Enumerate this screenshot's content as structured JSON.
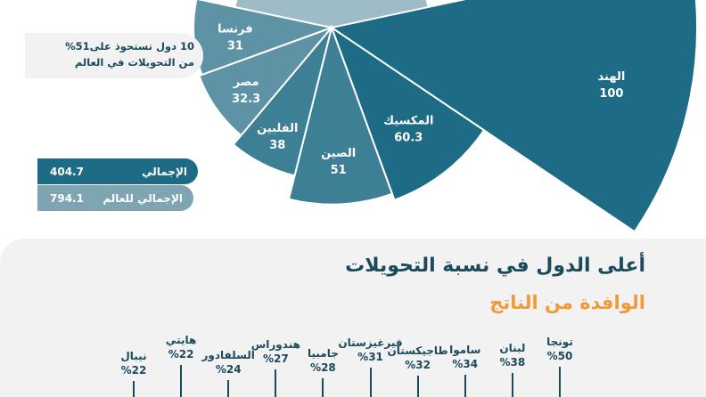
{
  "colors": {
    "dark_teal": "#1d6b84",
    "mid_teal": "#3d7f95",
    "light_teal": "#5e93a6",
    "navy_text": "#1a4a5c",
    "orange": "#f29a36",
    "lower_panel_bg": "#f2f2f2"
  },
  "chart_data": [
    {
      "type": "pie",
      "variant": "nightingale-rose",
      "categories": [
        "الهند",
        "المكسيك",
        "الصين",
        "الفلبين",
        "مصر",
        "فرنسا"
      ],
      "values": [
        100,
        60.3,
        51,
        38,
        32.3,
        31
      ]
    },
    {
      "type": "bar",
      "title": "أعلى الدول في نسبة التحويلات",
      "subtitle": "الوافدة من الناتج",
      "categories": [
        "تونجا",
        "لبنان",
        "ساموا",
        "طاجيكستان",
        "قيرغيزستان",
        "جامبيا",
        "هندوراس",
        "السلفادور",
        "هايتي",
        "نيبال"
      ],
      "values": [
        50,
        38,
        34,
        32,
        31,
        28,
        27,
        24,
        22,
        22
      ],
      "unit": "%"
    }
  ],
  "labels": {
    "pct_sign": "%"
  },
  "note": {
    "line1": "10 دول تستحوذ على51%",
    "line2": "من التحويلات في العالم"
  },
  "totals": {
    "total_label": "الإجمالي",
    "total_value": "404.7",
    "world_label": "الإجمالي للعالم",
    "world_value": "794.1"
  }
}
